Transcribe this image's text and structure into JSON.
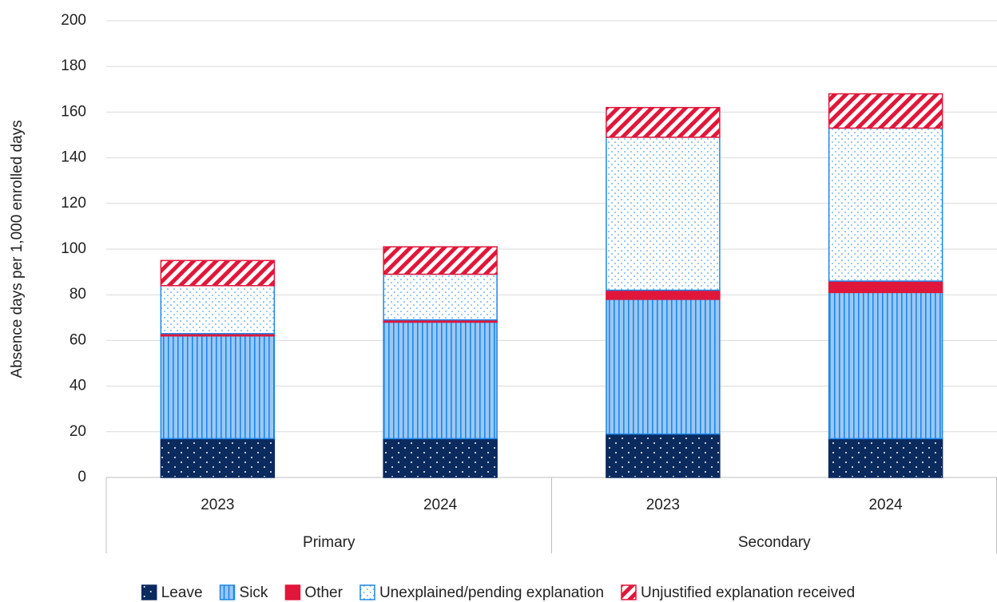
{
  "chart_data": {
    "type": "stacked-bar",
    "y_label": "Absence days per 1,000 enrolled days",
    "categories": [
      "2023",
      "2024",
      "2023",
      "2024"
    ],
    "groups": [
      "Primary",
      "Secondary"
    ],
    "series": [
      {
        "name": "Leave",
        "color": "#0b2a5e",
        "pattern": "dots-on-fill",
        "values": [
          17,
          17,
          19,
          17
        ]
      },
      {
        "name": "Sick",
        "color": "#1f86e8",
        "pattern": "lines-on-tint",
        "values": [
          45,
          51,
          59,
          64
        ]
      },
      {
        "name": "Other",
        "color": "#e0173a",
        "pattern": "solid",
        "values": [
          1,
          1,
          4,
          5
        ]
      },
      {
        "name": "Unexplained/pending explanation",
        "color": "#1f86e8",
        "pattern": "dots-on-white",
        "values": [
          21,
          20,
          67,
          67
        ]
      },
      {
        "name": "Unjustified explanation received",
        "color": "#e0173a",
        "pattern": "stripes-on-white",
        "values": [
          11,
          12,
          13,
          15
        ]
      }
    ],
    "ylim": [
      0,
      200
    ],
    "yticks": [
      0,
      20,
      40,
      60,
      80,
      100,
      120,
      140,
      160,
      180,
      200
    ],
    "grid": true
  }
}
